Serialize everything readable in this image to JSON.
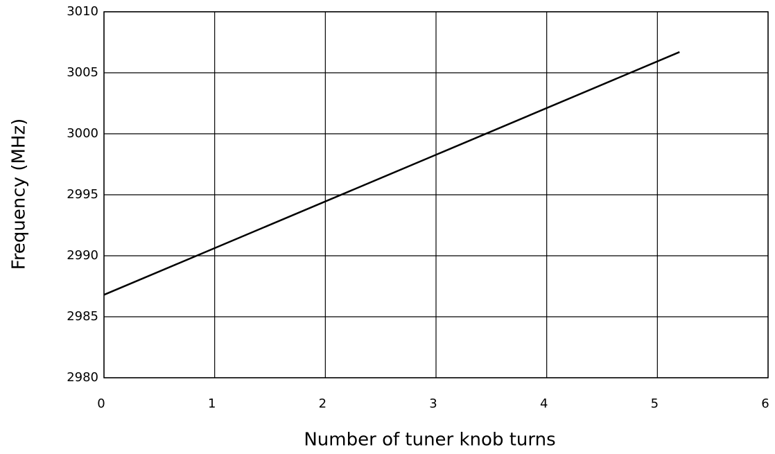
{
  "chart_data": {
    "type": "line",
    "x_label": "Number of tuner knob turns",
    "y_label": "Frequency (MHz)",
    "series": [
      {
        "x": [
          0,
          5.2
        ],
        "values": [
          2986.8,
          3006.7
        ],
        "color": "#000000"
      }
    ],
    "xlim": [
      0,
      6
    ],
    "xticks": [
      0,
      1,
      2,
      3,
      4,
      5,
      6
    ],
    "ylim": [
      2980,
      3010
    ],
    "yticks": [
      2980,
      2985,
      2990,
      2995,
      3000,
      3005,
      3010
    ],
    "grid": true
  }
}
